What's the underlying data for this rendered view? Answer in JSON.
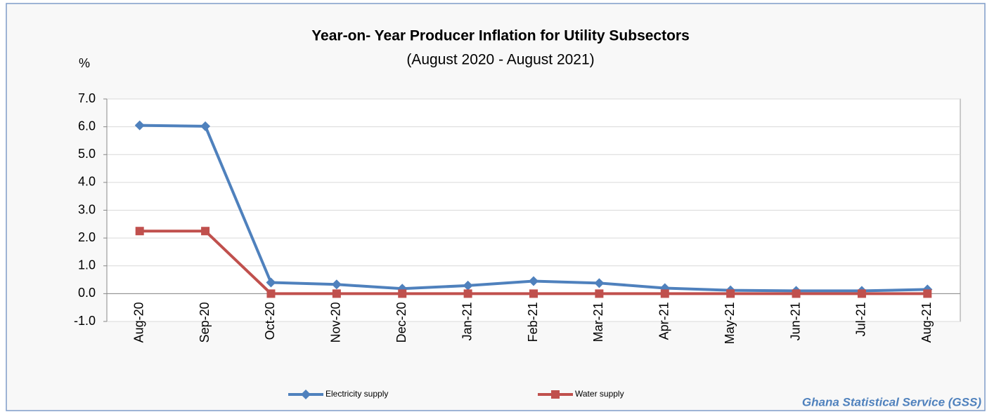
{
  "chart_data": {
    "type": "line",
    "title": "Year-on- Year Producer Inflation for Utility Subsectors",
    "subtitle": "(August 2020 - August 2021)",
    "y_label": "%",
    "source": "Ghana Statistical Service (GSS)",
    "categories": [
      "Aug-20",
      "Sep-20",
      "Oct-20",
      "Nov-20",
      "Dec-20",
      "Jan-21",
      "Feb-21",
      "Mar-21",
      "Apr-21",
      "May-21",
      "Jun-21",
      "Jul-21",
      "Aug-21"
    ],
    "series": [
      {
        "name": "Electricity supply",
        "color": "#4f81bd",
        "marker": "diamond",
        "values": [
          6.05,
          6.02,
          0.4,
          0.33,
          0.18,
          0.29,
          0.45,
          0.38,
          0.2,
          0.12,
          0.1,
          0.1,
          0.15
        ]
      },
      {
        "name": "Water supply",
        "color": "#c0504d",
        "marker": "square",
        "values": [
          2.25,
          2.25,
          0.0,
          0.0,
          0.0,
          0.0,
          0.0,
          0.0,
          0.0,
          0.0,
          0.0,
          0.0,
          0.0
        ]
      }
    ],
    "ylim": [
      -1,
      7
    ],
    "yticks": [
      {
        "value": -1,
        "label": "-1.0"
      },
      {
        "value": 0,
        "label": "0.0"
      },
      {
        "value": 1,
        "label": "1.0"
      },
      {
        "value": 2,
        "label": "2.0"
      },
      {
        "value": 3,
        "label": "3.0"
      },
      {
        "value": 4,
        "label": "4.0"
      },
      {
        "value": 5,
        "label": "5.0"
      },
      {
        "value": 6,
        "label": "6.0"
      },
      {
        "value": 7,
        "label": "7.0"
      }
    ],
    "grid": true,
    "legend": "bottom"
  }
}
